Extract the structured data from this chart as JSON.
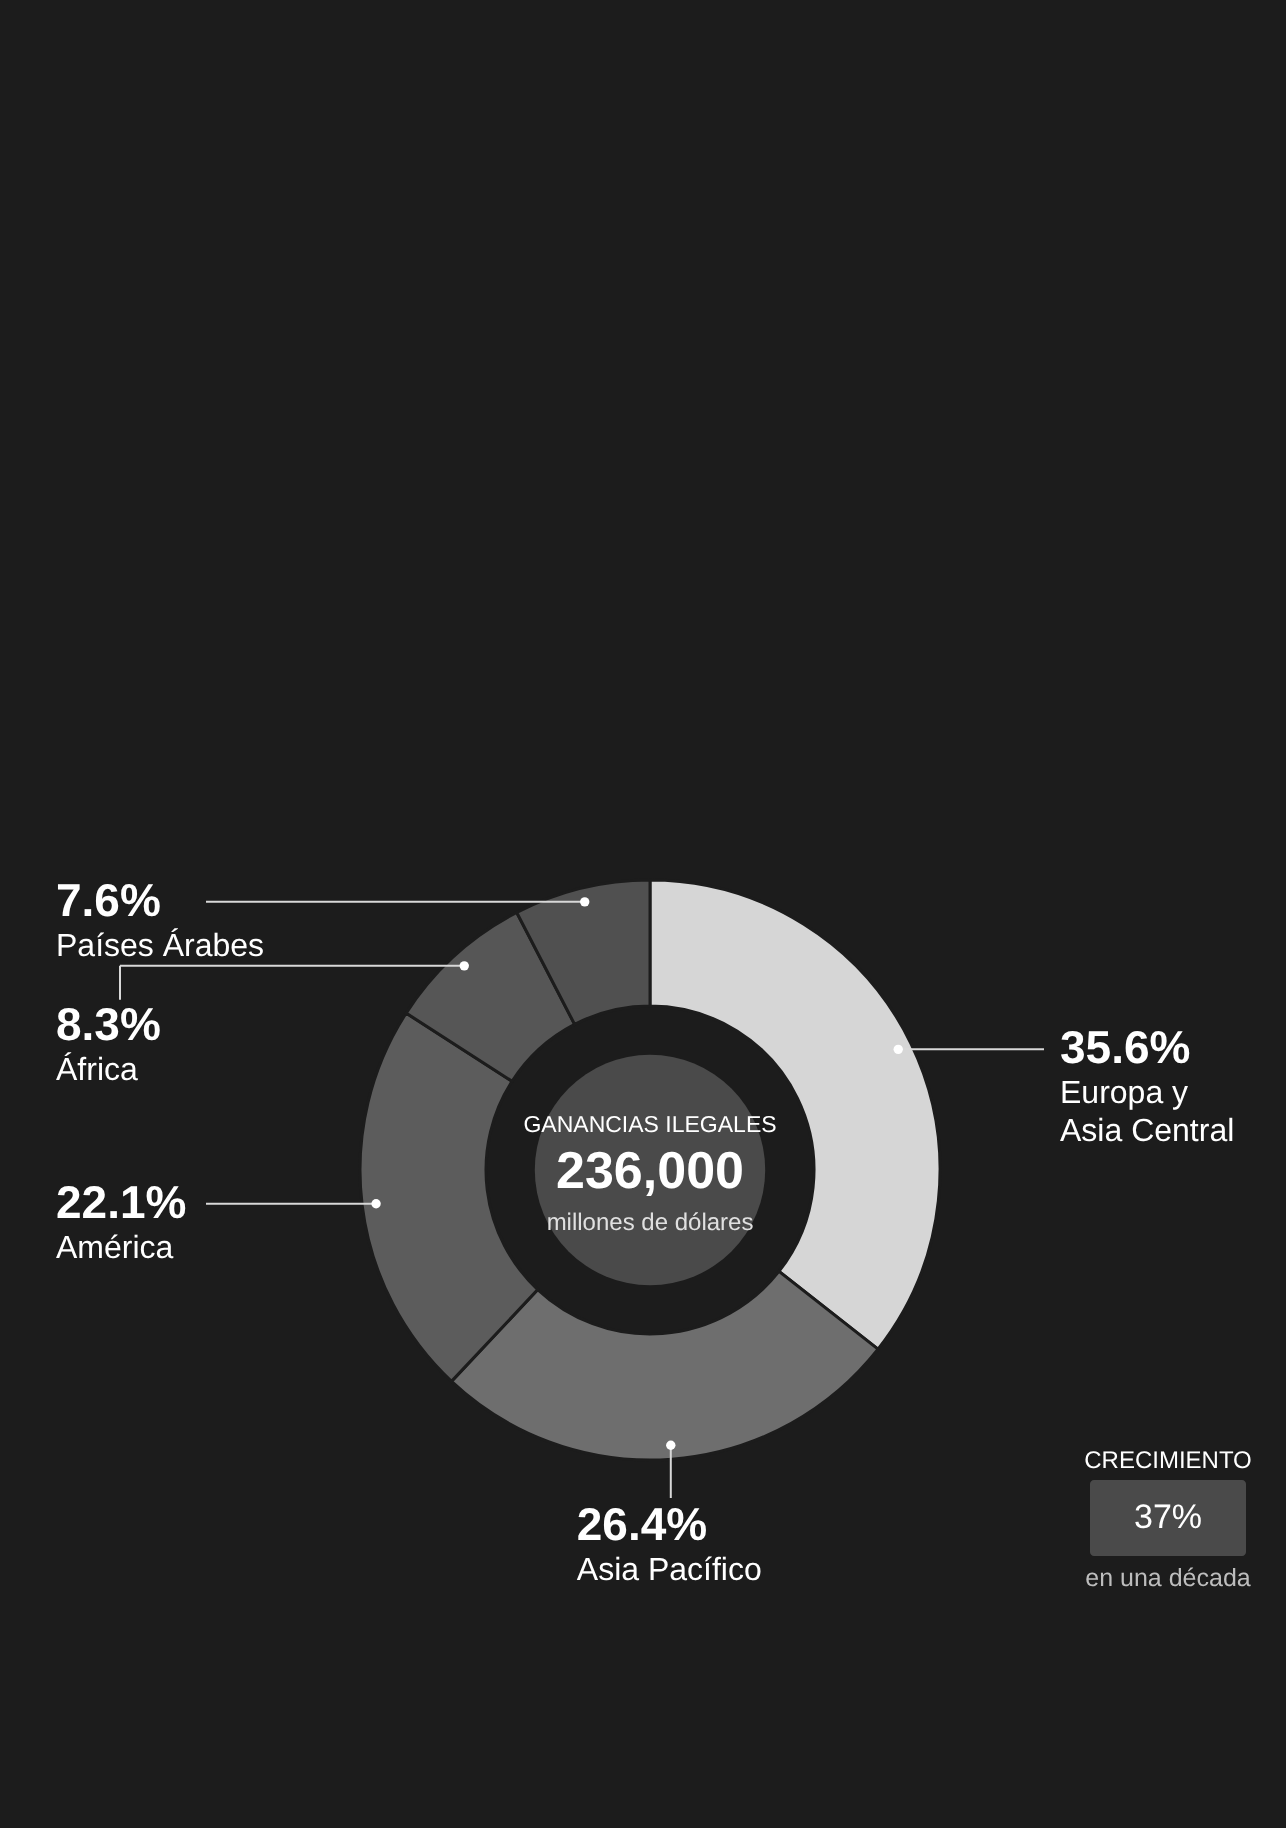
{
  "chart_data": {
    "type": "donut",
    "categories": [
      "Europa y Asia Central",
      "Asia Pacífico",
      "América",
      "África",
      "Países Árabes"
    ],
    "values": [
      35.6,
      26.4,
      22.1,
      8.3,
      7.6
    ],
    "value_labels": [
      "35.6%",
      "26.4%",
      "22.1%",
      "8.3%",
      "7.6%"
    ],
    "colors": [
      "#d6d6d6",
      "#6e6e6e",
      "#5c5c5c",
      "#565656",
      "#505050"
    ],
    "annotations": [
      "GANANCIAS ILEGALES",
      "236,000",
      "millones de dólares",
      "CRECIMIENTO",
      "37%",
      "en una década"
    ]
  }
}
